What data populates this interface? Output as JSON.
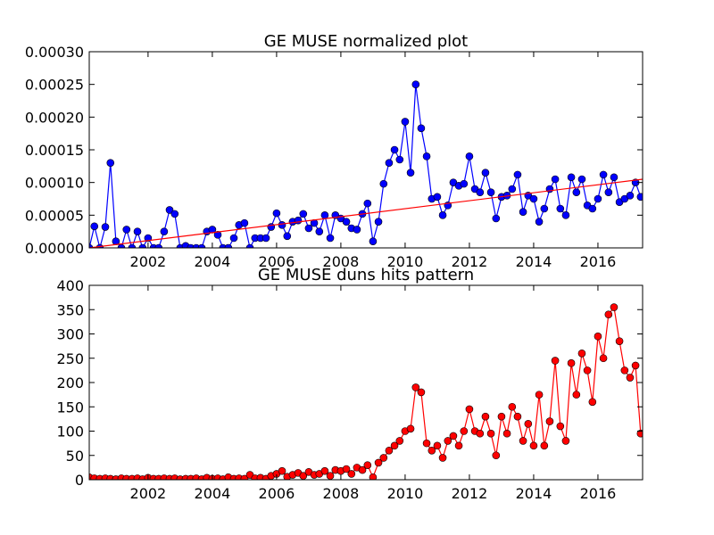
{
  "chart_data": [
    {
      "type": "line",
      "title": "GE MUSE normalized plot",
      "x": [
        2000.17,
        2000.33,
        2000.5,
        2000.67,
        2000.83,
        2001.0,
        2001.17,
        2001.33,
        2001.5,
        2001.67,
        2001.83,
        2002.0,
        2002.17,
        2002.33,
        2002.5,
        2002.67,
        2002.83,
        2003.0,
        2003.17,
        2003.33,
        2003.5,
        2003.67,
        2003.83,
        2004.0,
        2004.17,
        2004.33,
        2004.5,
        2004.67,
        2004.83,
        2005.0,
        2005.17,
        2005.33,
        2005.5,
        2005.67,
        2005.83,
        2006.0,
        2006.17,
        2006.33,
        2006.5,
        2006.67,
        2006.83,
        2007.0,
        2007.17,
        2007.33,
        2007.5,
        2007.67,
        2007.83,
        2008.0,
        2008.17,
        2008.33,
        2008.5,
        2008.67,
        2008.83,
        2009.0,
        2009.17,
        2009.33,
        2009.5,
        2009.67,
        2009.83,
        2010.0,
        2010.17,
        2010.33,
        2010.5,
        2010.67,
        2010.83,
        2011.0,
        2011.17,
        2011.33,
        2011.5,
        2011.67,
        2011.83,
        2012.0,
        2012.17,
        2012.33,
        2012.5,
        2012.67,
        2012.83,
        2013.0,
        2013.17,
        2013.33,
        2013.5,
        2013.67,
        2013.83,
        2014.0,
        2014.17,
        2014.33,
        2014.5,
        2014.67,
        2014.83,
        2015.0,
        2015.17,
        2015.33,
        2015.5,
        2015.67,
        2015.83,
        2016.0,
        2016.17,
        2016.33,
        2016.5,
        2016.67,
        2016.83,
        2017.0,
        2017.17,
        2017.33
      ],
      "series": [
        {
          "color": "#0000ff",
          "marker": true,
          "values": [
            0,
            3.3e-05,
            0,
            3.2e-05,
            0.00013,
            1e-05,
            0,
            2.8e-05,
            0,
            2.5e-05,
            0,
            1.5e-05,
            0,
            0,
            2.5e-05,
            5.8e-05,
            5.2e-05,
            0,
            3e-06,
            0,
            0,
            0,
            2.5e-05,
            2.8e-05,
            2e-05,
            0,
            0,
            1.5e-05,
            3.5e-05,
            3.8e-05,
            0,
            1.5e-05,
            1.5e-05,
            1.5e-05,
            3.2e-05,
            5.3e-05,
            3.5e-05,
            1.8e-05,
            4e-05,
            4.2e-05,
            5.2e-05,
            3e-05,
            3.8e-05,
            2.5e-05,
            5e-05,
            1.5e-05,
            5e-05,
            4.5e-05,
            4e-05,
            3e-05,
            2.8e-05,
            5.2e-05,
            6.8e-05,
            1e-05,
            4e-05,
            9.8e-05,
            0.00013,
            0.00015,
            0.000135,
            0.000193,
            0.000115,
            0.00025,
            0.000183,
            0.00014,
            7.5e-05,
            7.8e-05,
            5e-05,
            6.5e-05,
            0.0001,
            9.5e-05,
            9.8e-05,
            0.00014,
            9e-05,
            8.5e-05,
            0.000115,
            8.5e-05,
            4.5e-05,
            7.8e-05,
            8e-05,
            9e-05,
            0.000112,
            5.5e-05,
            8e-05,
            7.5e-05,
            4e-05,
            6e-05,
            9e-05,
            0.000105,
            6e-05,
            5e-05,
            0.000108,
            8.5e-05,
            0.000105,
            6.5e-05,
            6e-05,
            7.5e-05,
            0.000112,
            8.5e-05,
            0.000108,
            7e-05,
            7.5e-05,
            8e-05,
            0.0001,
            7.8e-05
          ]
        },
        {
          "color": "#ff0000",
          "marker": false,
          "x": [
            2000.17,
            2017.39
          ],
          "values": [
            0,
            0.000105
          ]
        }
      ],
      "xlim": [
        2000.17,
        2017.39
      ],
      "xticks": [
        2002,
        2004,
        2006,
        2008,
        2010,
        2012,
        2014,
        2016
      ],
      "ylim": [
        0,
        0.0003
      ],
      "yticks": [
        {
          "value": 0,
          "label": "0.00000"
        },
        {
          "value": 5e-05,
          "label": "0.00005"
        },
        {
          "value": 0.0001,
          "label": "0.00010"
        },
        {
          "value": 0.00015,
          "label": "0.00015"
        },
        {
          "value": 0.0002,
          "label": "0.00020"
        },
        {
          "value": 0.00025,
          "label": "0.00025"
        },
        {
          "value": 0.0003,
          "label": "0.00030"
        }
      ]
    },
    {
      "type": "line",
      "title": "GE MUSE duns hits pattern",
      "x": [
        2000.17,
        2000.33,
        2000.5,
        2000.67,
        2000.83,
        2001.0,
        2001.17,
        2001.33,
        2001.5,
        2001.67,
        2001.83,
        2002.0,
        2002.17,
        2002.33,
        2002.5,
        2002.67,
        2002.83,
        2003.0,
        2003.17,
        2003.33,
        2003.5,
        2003.67,
        2003.83,
        2004.0,
        2004.17,
        2004.33,
        2004.5,
        2004.67,
        2004.83,
        2005.0,
        2005.17,
        2005.33,
        2005.5,
        2005.67,
        2005.83,
        2006.0,
        2006.17,
        2006.33,
        2006.5,
        2006.67,
        2006.83,
        2007.0,
        2007.17,
        2007.33,
        2007.5,
        2007.67,
        2007.83,
        2008.0,
        2008.17,
        2008.33,
        2008.5,
        2008.67,
        2008.83,
        2009.0,
        2009.17,
        2009.33,
        2009.5,
        2009.67,
        2009.83,
        2010.0,
        2010.17,
        2010.33,
        2010.5,
        2010.67,
        2010.83,
        2011.0,
        2011.17,
        2011.33,
        2011.5,
        2011.67,
        2011.83,
        2012.0,
        2012.17,
        2012.33,
        2012.5,
        2012.67,
        2012.83,
        2013.0,
        2013.17,
        2013.33,
        2013.5,
        2013.67,
        2013.83,
        2014.0,
        2014.17,
        2014.33,
        2014.5,
        2014.67,
        2014.83,
        2015.0,
        2015.17,
        2015.33,
        2015.5,
        2015.67,
        2015.83,
        2016.0,
        2016.17,
        2016.33,
        2016.5,
        2016.67,
        2016.83,
        2017.0,
        2017.17,
        2017.33
      ],
      "series": [
        {
          "color": "#ff0000",
          "marker": true,
          "values": [
            5,
            3,
            2,
            3,
            2,
            1,
            3,
            2,
            2,
            3,
            1,
            4,
            2,
            2,
            3,
            2,
            3,
            1,
            2,
            2,
            3,
            1,
            4,
            2,
            3,
            1,
            5,
            2,
            3,
            2,
            10,
            3,
            4,
            2,
            8,
            12,
            18,
            6,
            10,
            14,
            8,
            16,
            10,
            12,
            18,
            8,
            20,
            18,
            22,
            12,
            25,
            20,
            30,
            5,
            35,
            45,
            60,
            70,
            80,
            100,
            105,
            190,
            180,
            75,
            60,
            70,
            45,
            80,
            90,
            70,
            100,
            145,
            100,
            95,
            130,
            95,
            50,
            130,
            95,
            150,
            130,
            80,
            115,
            70,
            175,
            70,
            120,
            245,
            110,
            80,
            240,
            175,
            260,
            225,
            160,
            295,
            250,
            340,
            355,
            285,
            225,
            210,
            235,
            95
          ]
        }
      ],
      "xlim": [
        2000.17,
        2017.39
      ],
      "xticks": [
        2002,
        2004,
        2006,
        2008,
        2010,
        2012,
        2014,
        2016
      ],
      "ylim": [
        0,
        400
      ],
      "yticks": [
        0,
        50,
        100,
        150,
        200,
        250,
        300,
        350,
        400
      ]
    }
  ]
}
